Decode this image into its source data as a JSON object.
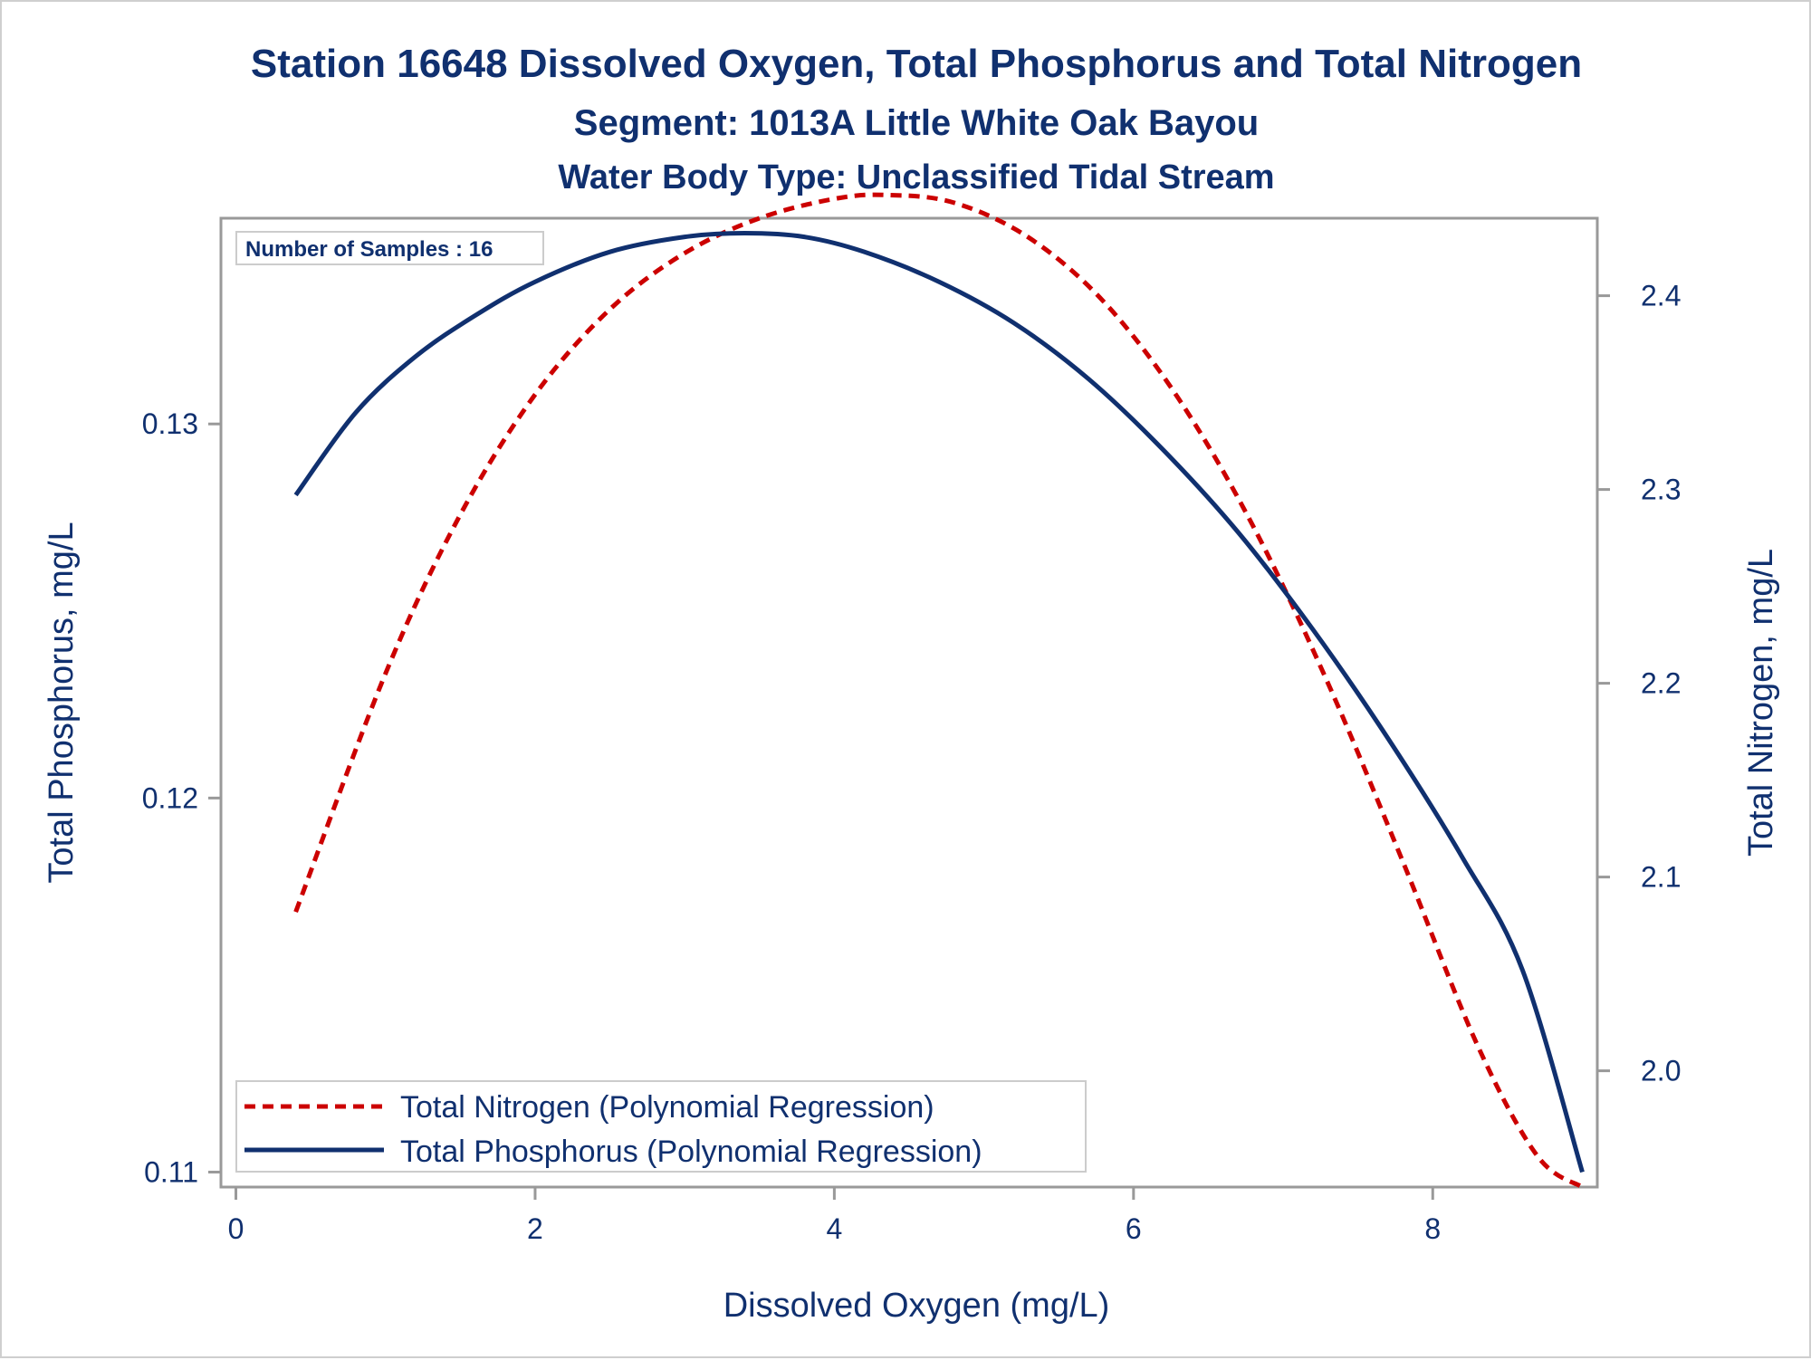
{
  "titles": {
    "line1": "Station 16648  Dissolved Oxygen, Total Phosphorus and Total Nitrogen",
    "line2": "Segment: 1013A  Little White Oak Bayou",
    "line3": "Water Body Type: Unclassified Tidal Stream"
  },
  "inset": {
    "text": "Number of Samples : 16"
  },
  "legend": {
    "nitrogen": "Total Nitrogen (Polynomial Regression)",
    "phosphorus": "Total Phosphorus (Polynomial Regression)"
  },
  "chart_data": {
    "type": "line",
    "xlabel": "Dissolved Oxygen (mg/L)",
    "ylabel_left": "Total Phosphorus, mg/L",
    "ylabel_right": "Total Nitrogen, mg/L",
    "xlim": [
      -0.1,
      9.1
    ],
    "ylim_left": [
      0.1096,
      0.1355
    ],
    "ylim_right": [
      1.94,
      2.44
    ],
    "x_ticks": [
      0,
      2,
      4,
      6,
      8
    ],
    "y_left_ticks": [
      0.11,
      0.12,
      0.13
    ],
    "y_right_ticks": [
      2.0,
      2.1,
      2.2,
      2.3,
      2.4
    ],
    "grid": false,
    "legend_position": "bottom-left",
    "colors": {
      "nitrogen": "#cc0000",
      "phosphorus": "#10306f",
      "axis": "#999999",
      "text": "#10306f"
    },
    "series": [
      {
        "name": "Total Nitrogen (Polynomial Regression)",
        "axis": "right",
        "style": "dashed",
        "x": [
          0.4,
          1.0,
          1.5,
          2.0,
          2.5,
          3.0,
          3.5,
          4.0,
          4.35,
          4.8,
          5.3,
          5.8,
          6.3,
          6.8,
          7.3,
          7.8,
          8.3,
          8.7,
          9.0
        ],
        "y": [
          2.082,
          2.205,
          2.287,
          2.349,
          2.393,
          2.422,
          2.44,
          2.45,
          2.452,
          2.448,
          2.43,
          2.397,
          2.347,
          2.281,
          2.2,
          2.108,
          2.013,
          1.956,
          1.94
        ]
      },
      {
        "name": "Total Phosphorus (Polynomial Regression)",
        "axis": "left",
        "style": "solid",
        "x": [
          0.4,
          0.8,
          1.2,
          1.6,
          2.0,
          2.5,
          3.0,
          3.4,
          3.8,
          4.2,
          4.7,
          5.2,
          5.7,
          6.2,
          6.7,
          7.2,
          7.7,
          8.2,
          8.6,
          9.0
        ],
        "y": [
          0.1281,
          0.1303,
          0.1318,
          0.1329,
          0.1338,
          0.1346,
          0.135,
          0.1351,
          0.135,
          0.1346,
          0.1338,
          0.1327,
          0.1312,
          0.1293,
          0.1271,
          0.1245,
          0.1216,
          0.1184,
          0.1154,
          0.11
        ]
      }
    ]
  }
}
